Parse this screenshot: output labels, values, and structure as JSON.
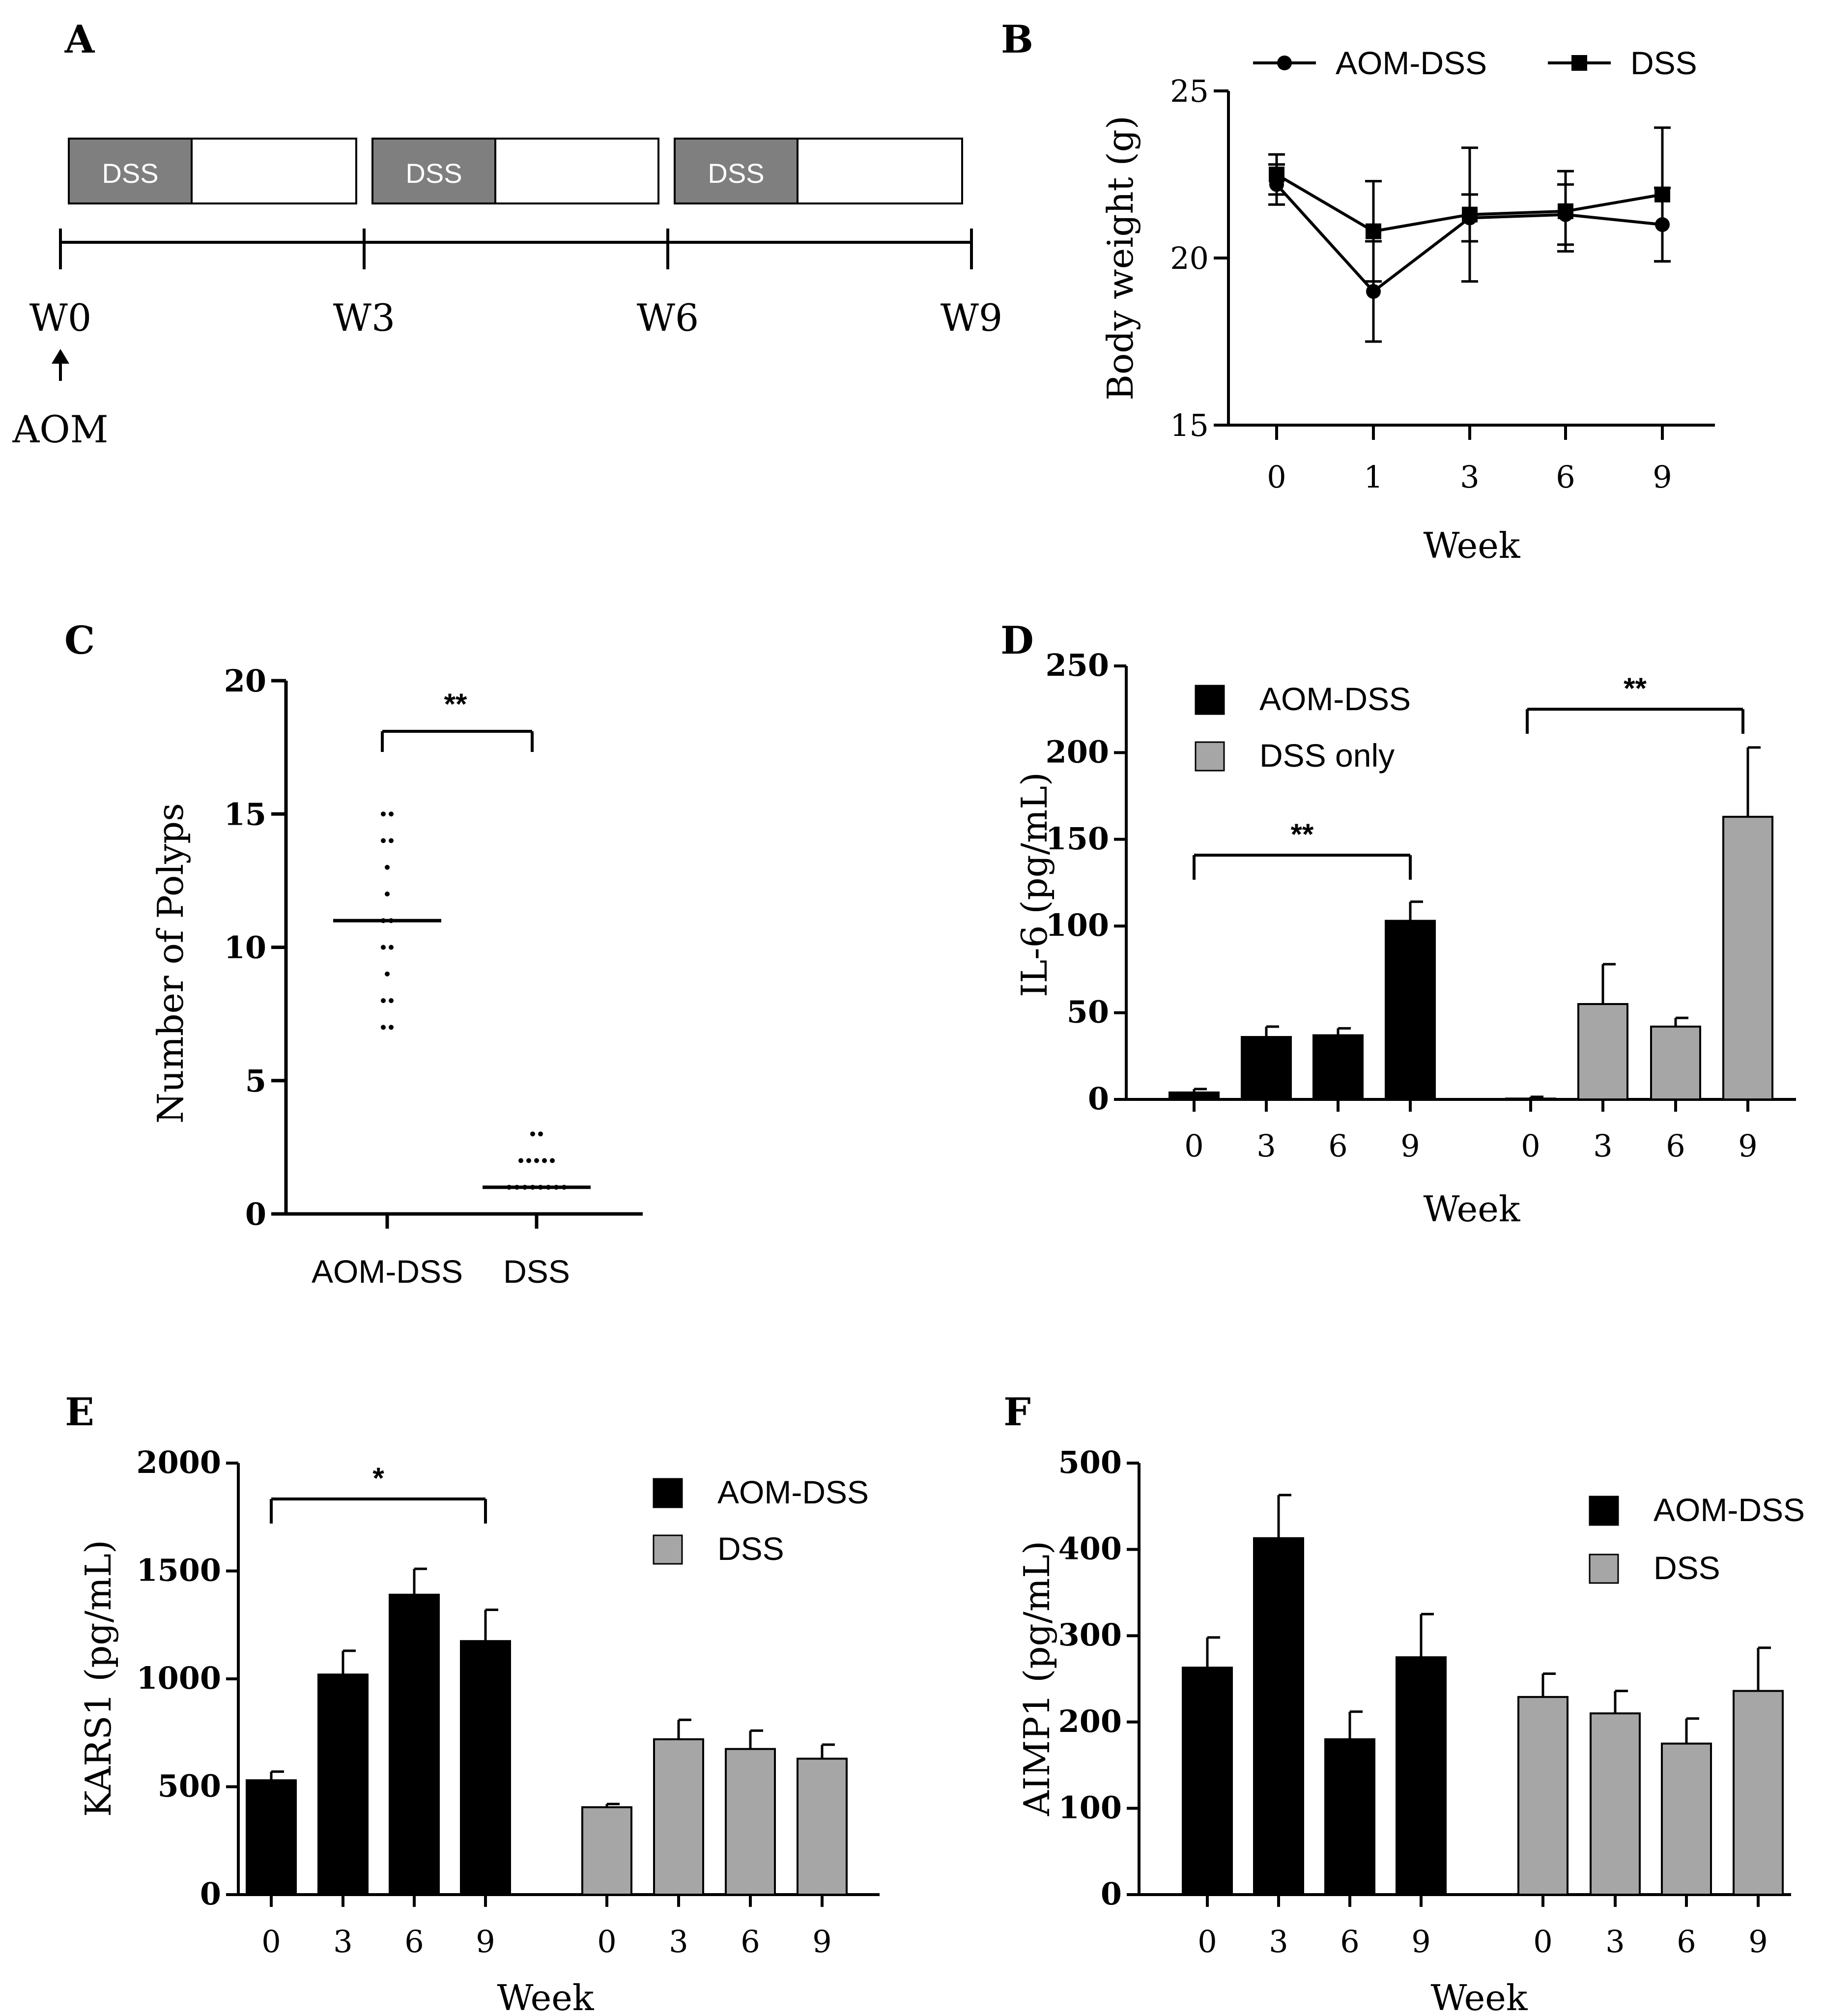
{
  "colors": {
    "black_bar": "#000000",
    "gray_bar": "#a6a6a6",
    "dss_box": "#7f7f7f"
  },
  "chart_data": [
    {
      "panel": "A",
      "type": "timeline",
      "box_label": "DSS",
      "weeks": [
        "W0",
        "W3",
        "W6",
        "W9"
      ],
      "injection_label": "AOM"
    },
    {
      "panel": "B",
      "type": "line",
      "xlabel": "Week",
      "ylabel": "Body weight (g)",
      "ylim": [
        15,
        25
      ],
      "yticks": [
        "15",
        "20",
        "25"
      ],
      "categories": [
        "0",
        "1",
        "3",
        "6",
        "9"
      ],
      "legend": [
        "AOM-DSS",
        "DSS"
      ],
      "series": [
        {
          "name": "AOM-DSS",
          "marker": "circle",
          "values": [
            22.2,
            19.0,
            21.2,
            21.3,
            21.0
          ],
          "errors": [
            0.6,
            1.5,
            0.7,
            0.9,
            1.1
          ]
        },
        {
          "name": "DSS",
          "marker": "square",
          "values": [
            22.5,
            20.8,
            21.3,
            21.4,
            21.9
          ],
          "errors": [
            0.6,
            1.5,
            2.0,
            1.2,
            2.0
          ]
        }
      ]
    },
    {
      "panel": "C",
      "type": "scatter",
      "ylabel": "Number of Polyps",
      "ylim": [
        0,
        20
      ],
      "yticks": [
        "0",
        "5",
        "10",
        "15",
        "20"
      ],
      "categories": [
        "AOM-DSS",
        "DSS"
      ],
      "groups": [
        {
          "name": "AOM-DSS",
          "points": [
            15,
            15,
            14,
            14,
            13,
            12,
            11,
            11,
            10,
            10,
            9,
            8,
            8,
            7,
            7
          ],
          "median": 11
        },
        {
          "name": "DSS",
          "points": [
            3,
            3,
            2,
            2,
            2,
            2,
            2,
            1,
            1,
            1,
            1,
            1,
            1,
            1,
            1
          ],
          "median": 1
        }
      ],
      "significance": "**"
    },
    {
      "panel": "D",
      "type": "bar",
      "xlabel": "Week",
      "ylabel": "IL-6 (pg/mL)",
      "ylim": [
        0,
        250
      ],
      "yticks": [
        "0",
        "50",
        "100",
        "150",
        "200",
        "250"
      ],
      "legend": [
        "AOM-DSS",
        "DSS only"
      ],
      "series": [
        {
          "name": "AOM-DSS",
          "categories": [
            "0",
            "3",
            "6",
            "9"
          ],
          "values": [
            4,
            36,
            37,
            103
          ],
          "errors": [
            2,
            6,
            4,
            11
          ]
        },
        {
          "name": "DSS only",
          "categories": [
            "0",
            "3",
            "6",
            "9"
          ],
          "values": [
            0.5,
            55,
            42,
            163
          ],
          "errors": [
            1,
            23,
            5,
            40
          ]
        }
      ],
      "significance": [
        "**",
        "**"
      ]
    },
    {
      "panel": "E",
      "type": "bar",
      "xlabel": "Week",
      "ylabel": "KARS1 (pg/mL)",
      "ylim": [
        0,
        2000
      ],
      "yticks": [
        "0",
        "500",
        "1000",
        "1500",
        "2000"
      ],
      "legend": [
        "AOM-DSS",
        "DSS"
      ],
      "series": [
        {
          "name": "AOM-DSS",
          "categories": [
            "0",
            "3",
            "6",
            "9"
          ],
          "values": [
            530,
            1020,
            1390,
            1175
          ],
          "errors": [
            40,
            110,
            120,
            145
          ]
        },
        {
          "name": "DSS",
          "categories": [
            "0",
            "3",
            "6",
            "9"
          ],
          "values": [
            405,
            720,
            675,
            630
          ],
          "errors": [
            15,
            90,
            85,
            65
          ]
        }
      ],
      "significance": [
        "*"
      ]
    },
    {
      "panel": "F",
      "type": "bar",
      "xlabel": "Week",
      "ylabel": "AIMP1 (pg/mL)",
      "ylim": [
        0,
        500
      ],
      "yticks": [
        "0",
        "100",
        "200",
        "300",
        "400",
        "500"
      ],
      "legend": [
        "AOM-DSS",
        "DSS"
      ],
      "series": [
        {
          "name": "AOM-DSS",
          "categories": [
            "0",
            "3",
            "6",
            "9"
          ],
          "values": [
            263,
            413,
            180,
            275
          ],
          "errors": [
            35,
            50,
            32,
            50
          ]
        },
        {
          "name": "DSS",
          "categories": [
            "0",
            "3",
            "6",
            "9"
          ],
          "values": [
            229,
            210,
            175,
            236
          ],
          "errors": [
            27,
            26,
            29,
            50
          ]
        }
      ]
    }
  ]
}
